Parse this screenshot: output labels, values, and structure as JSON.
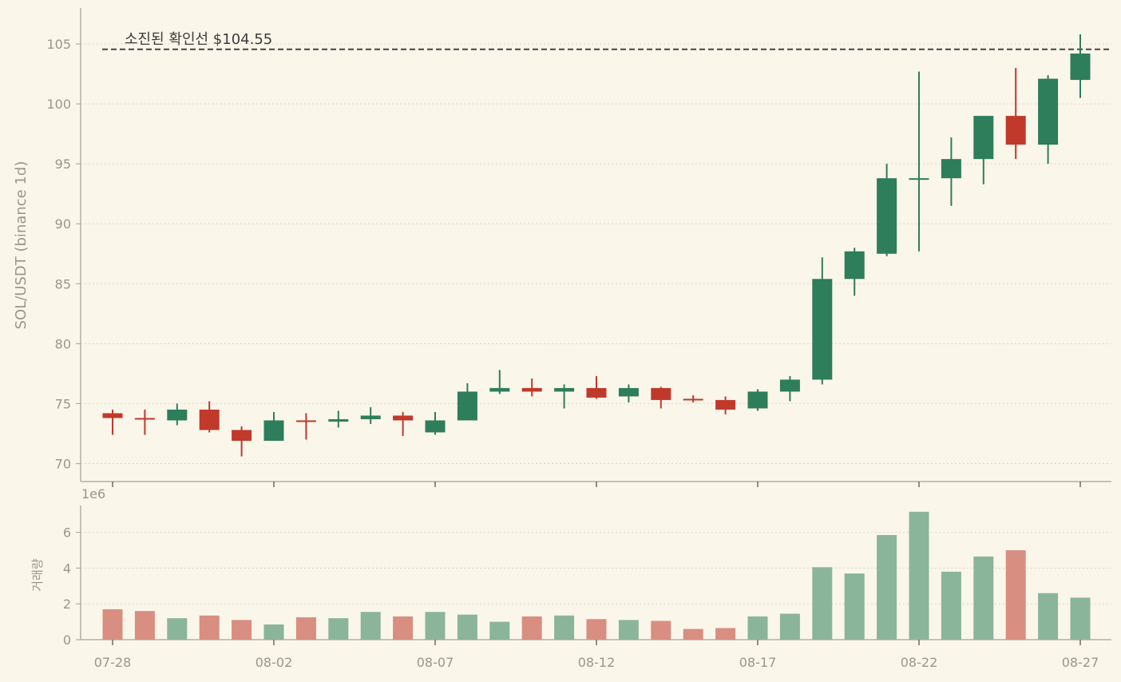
{
  "colors": {
    "background": "#faf6ea",
    "up": "#2e7d5b",
    "down": "#c0392b",
    "up_volume": "#8bb59b",
    "down_volume": "#d98e82",
    "grid": "#d9d6cc",
    "axis": "#b3afa3",
    "reference_line": "#444444"
  },
  "chart_data": [
    {
      "type": "candlestick",
      "ylabel": "SOL/USDT (binance 1d)",
      "ylim": [
        68.5,
        108
      ],
      "yticks": [
        "70",
        "75",
        "80",
        "85",
        "90",
        "95",
        "100",
        "105"
      ],
      "grid": "horizontal dotted",
      "reference_line": {
        "value": 104.55,
        "label": "소진된 확인선 $104.55"
      },
      "dates": [
        "07-28",
        "07-29",
        "07-30",
        "07-31",
        "08-01",
        "08-02",
        "08-03",
        "08-04",
        "08-05",
        "08-06",
        "08-07",
        "08-08",
        "08-09",
        "08-10",
        "08-11",
        "08-12",
        "08-13",
        "08-14",
        "08-15",
        "08-16",
        "08-17",
        "08-18",
        "08-19",
        "08-20",
        "08-21",
        "08-22",
        "08-23",
        "08-24",
        "08-25",
        "08-26",
        "08-27"
      ],
      "open": [
        74.2,
        73.8,
        73.6,
        74.5,
        72.8,
        71.9,
        73.6,
        73.5,
        73.7,
        74.0,
        72.6,
        73.6,
        76.0,
        76.3,
        76.0,
        76.3,
        75.6,
        76.3,
        75.4,
        75.3,
        74.6,
        76.0,
        77.0,
        85.4,
        87.5,
        93.8,
        93.8,
        95.4,
        99.0,
        96.6,
        102.0
      ],
      "high": [
        74.5,
        74.5,
        75.0,
        75.2,
        73.1,
        74.3,
        74.2,
        74.4,
        74.7,
        74.3,
        74.3,
        76.7,
        77.8,
        77.1,
        76.6,
        77.3,
        76.6,
        76.4,
        75.7,
        75.6,
        76.2,
        77.3,
        87.2,
        88.0,
        95.0,
        102.7,
        97.2,
        98.9,
        103.0,
        102.4,
        105.8
      ],
      "low": [
        72.4,
        72.4,
        73.2,
        72.6,
        70.6,
        71.9,
        72.0,
        73.0,
        73.3,
        72.3,
        72.4,
        73.6,
        75.8,
        75.6,
        74.6,
        75.4,
        75.1,
        74.6,
        75.1,
        74.1,
        74.4,
        75.2,
        76.6,
        84.0,
        87.3,
        87.7,
        91.5,
        93.3,
        95.4,
        95.0,
        100.5
      ],
      "close": [
        73.8,
        73.7,
        74.5,
        72.8,
        71.9,
        73.6,
        73.5,
        73.7,
        74.0,
        73.6,
        73.6,
        76.0,
        76.3,
        76.0,
        76.3,
        75.5,
        76.3,
        75.3,
        75.3,
        74.5,
        76.0,
        77.0,
        85.4,
        87.7,
        93.8,
        93.8,
        95.4,
        99.0,
        96.6,
        102.1,
        104.2
      ]
    },
    {
      "type": "bar",
      "ylabel": "거래량",
      "scale_label": "1e6",
      "ylim": [
        0,
        7.5
      ],
      "yticks": [
        "0",
        "2",
        "4",
        "6"
      ],
      "xticks": [
        "07-28",
        "08-02",
        "08-07",
        "08-12",
        "08-17",
        "08-22",
        "08-27"
      ],
      "values": [
        1.7,
        1.6,
        1.2,
        1.35,
        1.1,
        0.85,
        1.25,
        1.2,
        1.55,
        1.3,
        1.55,
        1.4,
        1.0,
        1.3,
        1.35,
        1.15,
        1.1,
        1.05,
        0.6,
        0.65,
        1.3,
        1.45,
        4.05,
        3.7,
        5.85,
        7.15,
        3.8,
        4.65,
        5.0,
        2.6,
        2.35
      ]
    }
  ]
}
